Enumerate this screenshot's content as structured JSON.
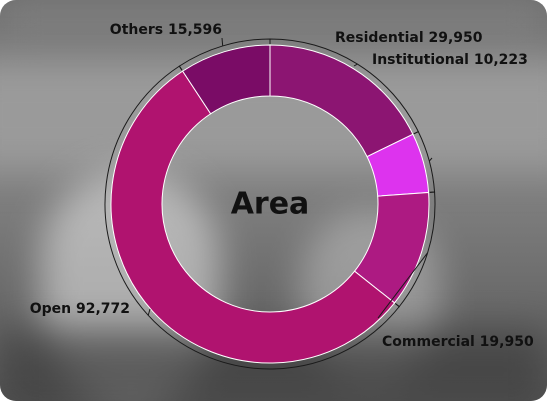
{
  "chart_data": {
    "type": "pie",
    "title": "",
    "center_label": "Area",
    "categories": [
      "Residential",
      "Institutional",
      "Commercial",
      "Open",
      "Others"
    ],
    "values": [
      29950,
      10223,
      19950,
      92772,
      15596
    ],
    "value_labels": [
      "29,950",
      "10,223",
      "19,950",
      "92,772",
      "15,596"
    ],
    "colors": [
      "#8c1572",
      "#dd33ee",
      "#ad1a82",
      "#b0136f",
      "#7a0c66"
    ],
    "donut": true,
    "legend": "none"
  }
}
